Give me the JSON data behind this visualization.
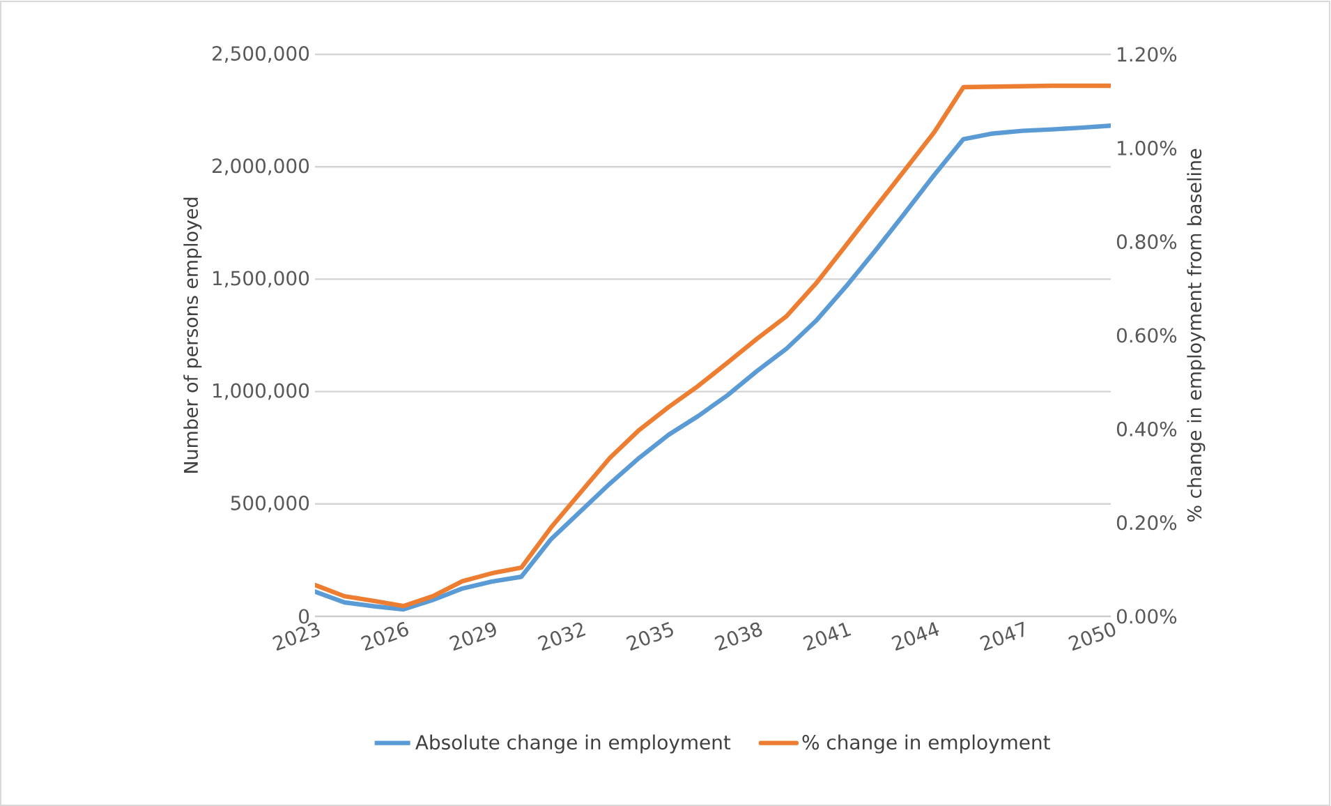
{
  "chart_data": {
    "type": "line",
    "x": [
      2023,
      2024,
      2025,
      2026,
      2027,
      2028,
      2029,
      2030,
      2031,
      2032,
      2033,
      2034,
      2035,
      2036,
      2037,
      2038,
      2039,
      2040,
      2041,
      2042,
      2043,
      2044,
      2045,
      2046,
      2047,
      2048,
      2049,
      2050
    ],
    "series": [
      {
        "name": "Absolute change in employment",
        "color": "#5b9bd5",
        "values": [
          110000,
          62000,
          45000,
          31000,
          73000,
          124000,
          155000,
          176000,
          342000,
          466000,
          590000,
          705000,
          808000,
          891000,
          984000,
          1092000,
          1191000,
          1315000,
          1465000,
          1625000,
          1792000,
          1962000,
          2123000,
          2148000,
          2160000,
          2166000,
          2174000,
          2183000
        ]
      },
      {
        "name": "% change in employment",
        "color": "#ed7d31",
        "axis": "y2",
        "values": [
          0.067,
          0.043,
          0.033,
          0.022,
          0.043,
          0.075,
          0.092,
          0.104,
          0.189,
          0.264,
          0.338,
          0.398,
          0.447,
          0.492,
          0.542,
          0.593,
          0.641,
          0.711,
          0.791,
          0.872,
          0.952,
          1.033,
          1.13,
          1.131,
          1.132,
          1.133,
          1.133,
          1.133
        ]
      }
    ],
    "ylabel": "Number of persons employed",
    "y2label": "% change in employment from baseline",
    "xlim": [
      2023,
      2050
    ],
    "xticks": [
      2023,
      2026,
      2029,
      2032,
      2035,
      2038,
      2041,
      2044,
      2047,
      2050
    ],
    "ylim": [
      0,
      2500000
    ],
    "yticks": [
      {
        "value": 0,
        "label": "0"
      },
      {
        "value": 500000,
        "label": "500,000"
      },
      {
        "value": 1000000,
        "label": "1,000,000"
      },
      {
        "value": 1500000,
        "label": "1,500,000"
      },
      {
        "value": 2000000,
        "label": "2,000,000"
      },
      {
        "value": 2500000,
        "label": "2,500,000"
      }
    ],
    "y2lim": [
      0,
      1.2
    ],
    "y2ticks": [
      {
        "value": 0,
        "label": "0.00%"
      },
      {
        "value": 0.2,
        "label": "0.20%"
      },
      {
        "value": 0.4,
        "label": "0.40%"
      },
      {
        "value": 0.6,
        "label": "0.60%"
      },
      {
        "value": 0.8,
        "label": "0.80%"
      },
      {
        "value": 1.0,
        "label": "1.00%"
      },
      {
        "value": 1.2,
        "label": "1.20%"
      }
    ],
    "grid": "y",
    "legend": "bottom",
    "marker": "none",
    "line_style": "solid"
  }
}
